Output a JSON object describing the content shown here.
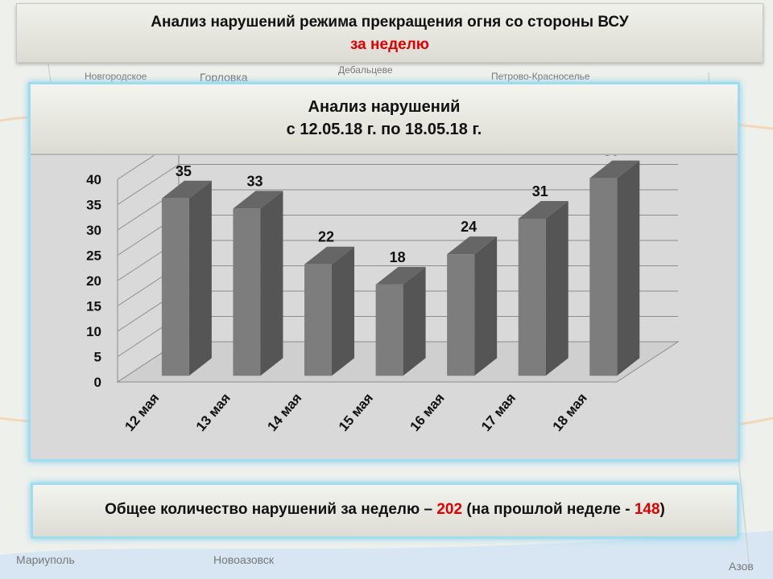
{
  "header": {
    "title": "Анализ нарушений режима прекращения огня со стороны ВСУ",
    "subtitle": "за неделю"
  },
  "panel": {
    "title_line1": "Анализ нарушений",
    "title_line2": "с 12.05.18 г. по 18.05.18 г."
  },
  "chart_data": {
    "type": "bar",
    "categories": [
      "12 мая",
      "13 мая",
      "14 мая",
      "15 мая",
      "16 мая",
      "17 мая",
      "18 мая"
    ],
    "values": [
      35,
      33,
      22,
      18,
      24,
      31,
      39
    ],
    "ylim": [
      0,
      40
    ],
    "yticks": [
      0,
      5,
      10,
      15,
      20,
      25,
      30,
      35,
      40
    ],
    "grid": true,
    "legend": "none"
  },
  "footer": {
    "text_before": "Общее количество нарушений за неделю – ",
    "total": "202",
    "text_middle": " (на прошлой неделе - ",
    "previous": "148",
    "text_after": ")"
  },
  "map_labels": [
    "Горловка",
    "Дебальцеве",
    "Новоазовск",
    "Мариуполь",
    "Азов",
    "Петрово-Красноселье",
    "Новгородское"
  ],
  "colors": {
    "accent_red": "#e00000",
    "frame_blue": "#9fdcf0",
    "bar_front": "#7d7d7d",
    "bar_side": "#555555",
    "bar_top": "#666666"
  }
}
